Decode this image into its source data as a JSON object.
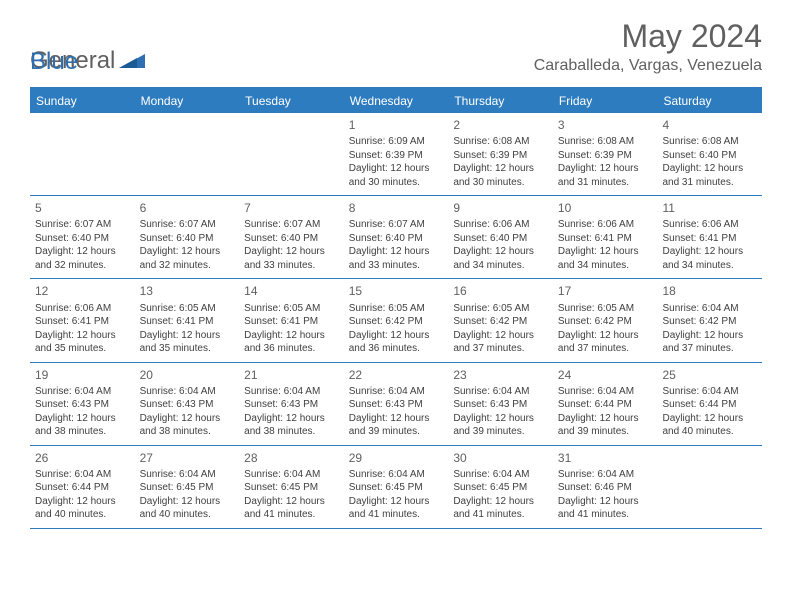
{
  "logo": {
    "general": "General",
    "blue": "Blue"
  },
  "title": "May 2024",
  "location": "Caraballeda, Vargas, Venezuela",
  "colors": {
    "header_bar": "#2d7cc0",
    "text_gray": "#606060",
    "cell_text": "#404040",
    "logo_blue": "#2d6fb0",
    "background": "#ffffff"
  },
  "fonts": {
    "title_size": 32,
    "location_size": 16,
    "weekday_size": 12,
    "daynum_size": 12,
    "body_size": 10
  },
  "weekdays": [
    "Sunday",
    "Monday",
    "Tuesday",
    "Wednesday",
    "Thursday",
    "Friday",
    "Saturday"
  ],
  "weeks": [
    [
      null,
      null,
      null,
      {
        "num": "1",
        "sunrise": "Sunrise: 6:09 AM",
        "sunset": "Sunset: 6:39 PM",
        "day1": "Daylight: 12 hours",
        "day2": "and 30 minutes."
      },
      {
        "num": "2",
        "sunrise": "Sunrise: 6:08 AM",
        "sunset": "Sunset: 6:39 PM",
        "day1": "Daylight: 12 hours",
        "day2": "and 30 minutes."
      },
      {
        "num": "3",
        "sunrise": "Sunrise: 6:08 AM",
        "sunset": "Sunset: 6:39 PM",
        "day1": "Daylight: 12 hours",
        "day2": "and 31 minutes."
      },
      {
        "num": "4",
        "sunrise": "Sunrise: 6:08 AM",
        "sunset": "Sunset: 6:40 PM",
        "day1": "Daylight: 12 hours",
        "day2": "and 31 minutes."
      }
    ],
    [
      {
        "num": "5",
        "sunrise": "Sunrise: 6:07 AM",
        "sunset": "Sunset: 6:40 PM",
        "day1": "Daylight: 12 hours",
        "day2": "and 32 minutes."
      },
      {
        "num": "6",
        "sunrise": "Sunrise: 6:07 AM",
        "sunset": "Sunset: 6:40 PM",
        "day1": "Daylight: 12 hours",
        "day2": "and 32 minutes."
      },
      {
        "num": "7",
        "sunrise": "Sunrise: 6:07 AM",
        "sunset": "Sunset: 6:40 PM",
        "day1": "Daylight: 12 hours",
        "day2": "and 33 minutes."
      },
      {
        "num": "8",
        "sunrise": "Sunrise: 6:07 AM",
        "sunset": "Sunset: 6:40 PM",
        "day1": "Daylight: 12 hours",
        "day2": "and 33 minutes."
      },
      {
        "num": "9",
        "sunrise": "Sunrise: 6:06 AM",
        "sunset": "Sunset: 6:40 PM",
        "day1": "Daylight: 12 hours",
        "day2": "and 34 minutes."
      },
      {
        "num": "10",
        "sunrise": "Sunrise: 6:06 AM",
        "sunset": "Sunset: 6:41 PM",
        "day1": "Daylight: 12 hours",
        "day2": "and 34 minutes."
      },
      {
        "num": "11",
        "sunrise": "Sunrise: 6:06 AM",
        "sunset": "Sunset: 6:41 PM",
        "day1": "Daylight: 12 hours",
        "day2": "and 34 minutes."
      }
    ],
    [
      {
        "num": "12",
        "sunrise": "Sunrise: 6:06 AM",
        "sunset": "Sunset: 6:41 PM",
        "day1": "Daylight: 12 hours",
        "day2": "and 35 minutes."
      },
      {
        "num": "13",
        "sunrise": "Sunrise: 6:05 AM",
        "sunset": "Sunset: 6:41 PM",
        "day1": "Daylight: 12 hours",
        "day2": "and 35 minutes."
      },
      {
        "num": "14",
        "sunrise": "Sunrise: 6:05 AM",
        "sunset": "Sunset: 6:41 PM",
        "day1": "Daylight: 12 hours",
        "day2": "and 36 minutes."
      },
      {
        "num": "15",
        "sunrise": "Sunrise: 6:05 AM",
        "sunset": "Sunset: 6:42 PM",
        "day1": "Daylight: 12 hours",
        "day2": "and 36 minutes."
      },
      {
        "num": "16",
        "sunrise": "Sunrise: 6:05 AM",
        "sunset": "Sunset: 6:42 PM",
        "day1": "Daylight: 12 hours",
        "day2": "and 37 minutes."
      },
      {
        "num": "17",
        "sunrise": "Sunrise: 6:05 AM",
        "sunset": "Sunset: 6:42 PM",
        "day1": "Daylight: 12 hours",
        "day2": "and 37 minutes."
      },
      {
        "num": "18",
        "sunrise": "Sunrise: 6:04 AM",
        "sunset": "Sunset: 6:42 PM",
        "day1": "Daylight: 12 hours",
        "day2": "and 37 minutes."
      }
    ],
    [
      {
        "num": "19",
        "sunrise": "Sunrise: 6:04 AM",
        "sunset": "Sunset: 6:43 PM",
        "day1": "Daylight: 12 hours",
        "day2": "and 38 minutes."
      },
      {
        "num": "20",
        "sunrise": "Sunrise: 6:04 AM",
        "sunset": "Sunset: 6:43 PM",
        "day1": "Daylight: 12 hours",
        "day2": "and 38 minutes."
      },
      {
        "num": "21",
        "sunrise": "Sunrise: 6:04 AM",
        "sunset": "Sunset: 6:43 PM",
        "day1": "Daylight: 12 hours",
        "day2": "and 38 minutes."
      },
      {
        "num": "22",
        "sunrise": "Sunrise: 6:04 AM",
        "sunset": "Sunset: 6:43 PM",
        "day1": "Daylight: 12 hours",
        "day2": "and 39 minutes."
      },
      {
        "num": "23",
        "sunrise": "Sunrise: 6:04 AM",
        "sunset": "Sunset: 6:43 PM",
        "day1": "Daylight: 12 hours",
        "day2": "and 39 minutes."
      },
      {
        "num": "24",
        "sunrise": "Sunrise: 6:04 AM",
        "sunset": "Sunset: 6:44 PM",
        "day1": "Daylight: 12 hours",
        "day2": "and 39 minutes."
      },
      {
        "num": "25",
        "sunrise": "Sunrise: 6:04 AM",
        "sunset": "Sunset: 6:44 PM",
        "day1": "Daylight: 12 hours",
        "day2": "and 40 minutes."
      }
    ],
    [
      {
        "num": "26",
        "sunrise": "Sunrise: 6:04 AM",
        "sunset": "Sunset: 6:44 PM",
        "day1": "Daylight: 12 hours",
        "day2": "and 40 minutes."
      },
      {
        "num": "27",
        "sunrise": "Sunrise: 6:04 AM",
        "sunset": "Sunset: 6:45 PM",
        "day1": "Daylight: 12 hours",
        "day2": "and 40 minutes."
      },
      {
        "num": "28",
        "sunrise": "Sunrise: 6:04 AM",
        "sunset": "Sunset: 6:45 PM",
        "day1": "Daylight: 12 hours",
        "day2": "and 41 minutes."
      },
      {
        "num": "29",
        "sunrise": "Sunrise: 6:04 AM",
        "sunset": "Sunset: 6:45 PM",
        "day1": "Daylight: 12 hours",
        "day2": "and 41 minutes."
      },
      {
        "num": "30",
        "sunrise": "Sunrise: 6:04 AM",
        "sunset": "Sunset: 6:45 PM",
        "day1": "Daylight: 12 hours",
        "day2": "and 41 minutes."
      },
      {
        "num": "31",
        "sunrise": "Sunrise: 6:04 AM",
        "sunset": "Sunset: 6:46 PM",
        "day1": "Daylight: 12 hours",
        "day2": "and 41 minutes."
      },
      null
    ]
  ]
}
